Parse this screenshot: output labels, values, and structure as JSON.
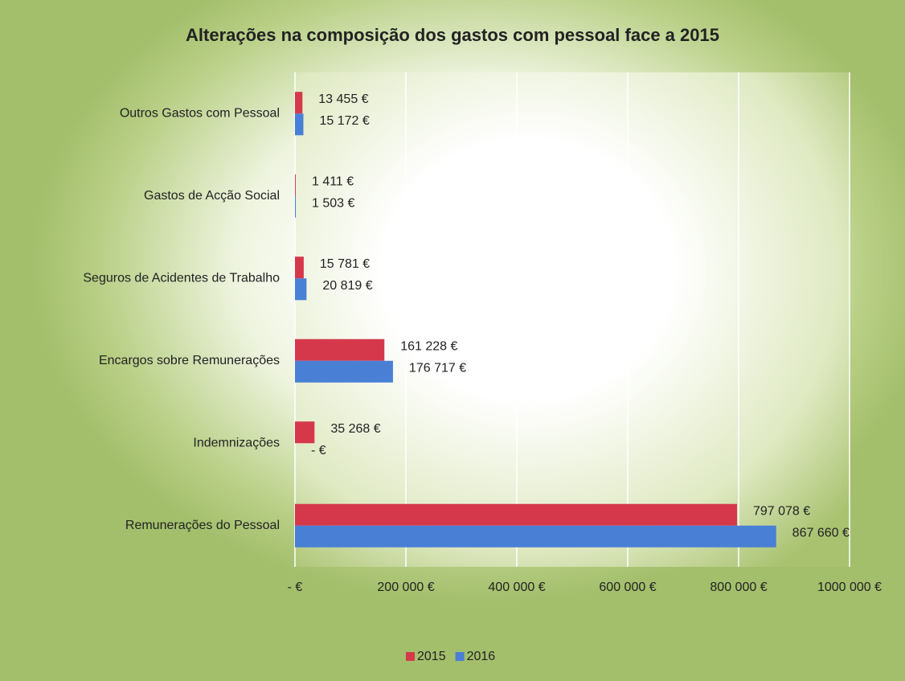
{
  "chart_data": {
    "type": "barh",
    "title": "Alterações na composição dos gastos com pessoal face a 2015",
    "categories": [
      "Outros Gastos com Pessoal",
      "Gastos de Acção Social",
      "Seguros de Acidentes de Trabalho",
      "Encargos sobre Remunerações",
      "Indemnizações",
      "Remunerações do Pessoal"
    ],
    "series": [
      {
        "name": "2015",
        "color": "#d6384b",
        "values": [
          13455,
          1411,
          15781,
          161228,
          35268,
          797078
        ],
        "value_labels": [
          "13 455 €",
          "1 411 €",
          "15 781 €",
          "161 228 €",
          "35 268 €",
          "797 078 €"
        ]
      },
      {
        "name": "2016",
        "color": "#4a7fd6",
        "values": [
          15172,
          1503,
          20819,
          176717,
          0,
          867660
        ],
        "value_labels": [
          "15 172 €",
          "1 503 €",
          "20 819 €",
          "176 717 €",
          "-   €",
          "867 660 €"
        ]
      }
    ],
    "xlim": [
      0,
      1000000
    ],
    "xticks": [
      {
        "value": 0,
        "label": "-   €"
      },
      {
        "value": 200000,
        "label": "200 000 €"
      },
      {
        "value": 400000,
        "label": "400 000 €"
      },
      {
        "value": 600000,
        "label": "600 000 €"
      },
      {
        "value": 800000,
        "label": "800 000 €"
      },
      {
        "value": 1000000,
        "label": "1000 000 €"
      }
    ],
    "grid": true,
    "legend": "bottom"
  }
}
